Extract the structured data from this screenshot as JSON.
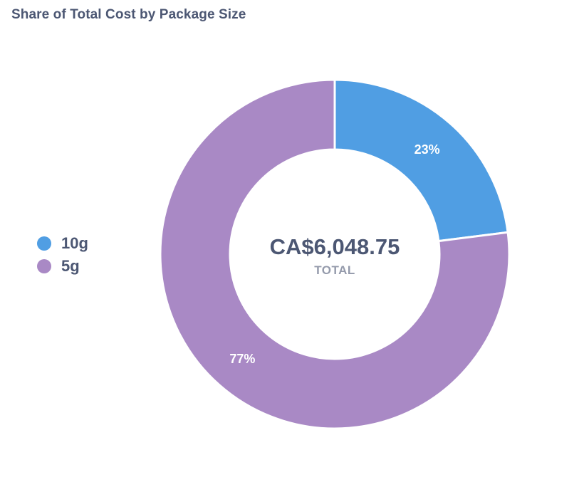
{
  "chart_data": {
    "type": "pie",
    "title": "Share of Total Cost by Package Size",
    "categories": [
      "10g",
      "5g"
    ],
    "values": [
      23,
      77
    ],
    "value_labels": [
      "23%",
      "77%"
    ],
    "colors": [
      "#509ee3",
      "#a989c5"
    ],
    "total": {
      "value": "CA$6,048.75",
      "label": "TOTAL"
    },
    "legend_position": "left"
  }
}
